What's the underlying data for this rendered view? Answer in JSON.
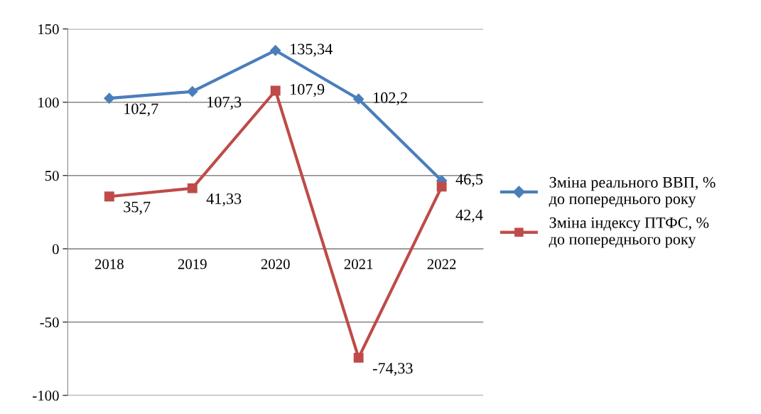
{
  "chart_data": {
    "type": "line",
    "categories": [
      "2018",
      "2019",
      "2020",
      "2021",
      "2022"
    ],
    "series": [
      {
        "name": "Зміна реального ВВП, %\nдо попереднього року",
        "color": "#4a7ebb",
        "marker": "diamond",
        "values": [
          102.7,
          107.3,
          135.34,
          102.2,
          46.5
        ],
        "value_labels": [
          "102,7",
          "107,3",
          "135,34",
          "102,2",
          "46,5"
        ]
      },
      {
        "name": "Зміна індексу ПТФС, %\nдо попереднього року",
        "color": "#be4b48",
        "marker": "square",
        "values": [
          35.7,
          41.33,
          107.9,
          -74.33,
          42.4
        ],
        "value_labels": [
          "35,7",
          "41,33",
          "107,9",
          "-74,33",
          "42,4"
        ]
      }
    ],
    "ylim": [
      -100,
      150
    ],
    "yticks": [
      -100,
      -50,
      0,
      50,
      100,
      150
    ],
    "grid": "y",
    "legend": "right"
  }
}
